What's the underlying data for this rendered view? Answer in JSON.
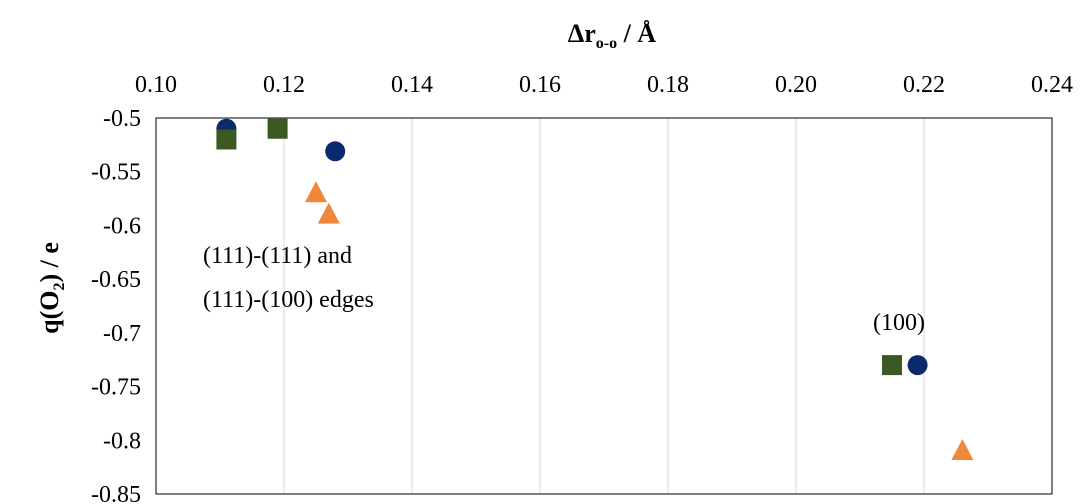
{
  "chart_data": {
    "type": "scatter",
    "x_axis_position": "top",
    "xlim": [
      0.1,
      0.24
    ],
    "ylim": [
      -0.85,
      -0.5
    ],
    "x_ticks": [
      "0.10",
      "0.12",
      "0.14",
      "0.16",
      "0.18",
      "0.20",
      "0.22",
      "0.24"
    ],
    "y_ticks": [
      "-0.5",
      "-0.55",
      "-0.6",
      "-0.65",
      "-0.7",
      "-0.75",
      "-0.8",
      "-0.85"
    ],
    "xlabel": {
      "main": "Δr",
      "sub": "o-o",
      "rest": " / Å"
    },
    "ylabel": {
      "main": "q(O",
      "sub": "2",
      "rest": ") / e"
    },
    "grid": {
      "vertical": true,
      "horizontal": false
    },
    "annotations": {
      "edges_line1": "(111)-(111) and",
      "edges_line2": "(111)-(100) edges",
      "facet": "(100)"
    },
    "series": [
      {
        "marker": "circle",
        "color": "#0a2a6b",
        "points": [
          [
            0.111,
            -0.51
          ],
          [
            0.128,
            -0.531
          ],
          [
            0.219,
            -0.73
          ]
        ]
      },
      {
        "marker": "square",
        "color": "#3b5a23",
        "points": [
          [
            0.111,
            -0.52
          ],
          [
            0.119,
            -0.51
          ],
          [
            0.215,
            -0.73
          ]
        ]
      },
      {
        "marker": "triangle",
        "color": "#f0883a",
        "points": [
          [
            0.125,
            -0.57
          ],
          [
            0.127,
            -0.59
          ],
          [
            0.226,
            -0.81
          ]
        ]
      }
    ]
  }
}
